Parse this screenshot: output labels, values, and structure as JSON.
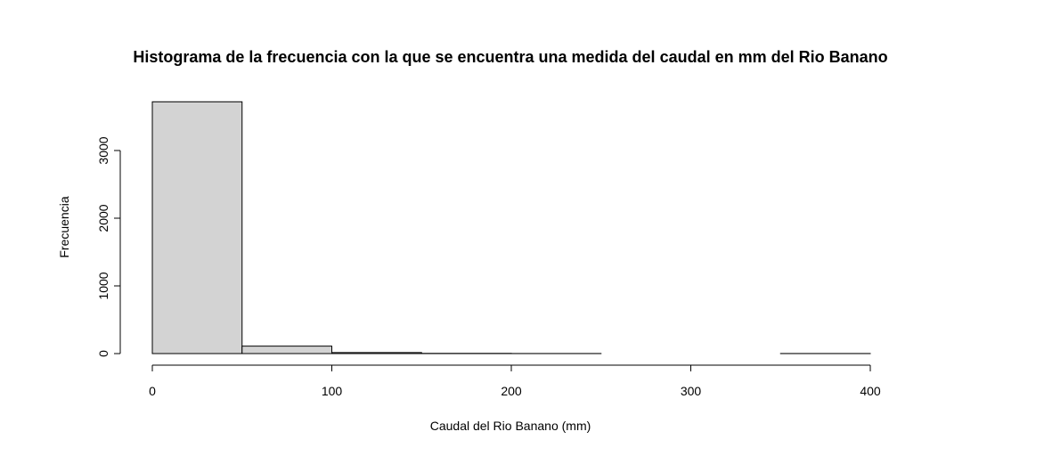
{
  "chart_data": {
    "type": "bar",
    "title": "Histograma de la frecuencia con la que se encuentra una medida del caudal en mm del Rio Banano",
    "xlabel": "Caudal del Rio Banano (mm)",
    "ylabel": "Frecuencia",
    "bins": [
      {
        "from": 0,
        "to": 50,
        "value": 3720
      },
      {
        "from": 50,
        "to": 100,
        "value": 110
      },
      {
        "from": 100,
        "to": 150,
        "value": 15
      },
      {
        "from": 150,
        "to": 200,
        "value": 3
      },
      {
        "from": 200,
        "to": 250,
        "value": 1
      },
      {
        "from": 250,
        "to": 300,
        "value": 0
      },
      {
        "from": 300,
        "to": 350,
        "value": 0
      },
      {
        "from": 350,
        "to": 400,
        "value": 1
      }
    ],
    "xlim": [
      0,
      400
    ],
    "ylim": [
      0,
      3720
    ],
    "xticks": [
      0,
      100,
      200,
      300,
      400
    ],
    "yticks": [
      0,
      1000,
      2000,
      3000
    ],
    "grid": false,
    "bar_fill": "#d3d3d3",
    "bar_stroke": "#000000"
  }
}
